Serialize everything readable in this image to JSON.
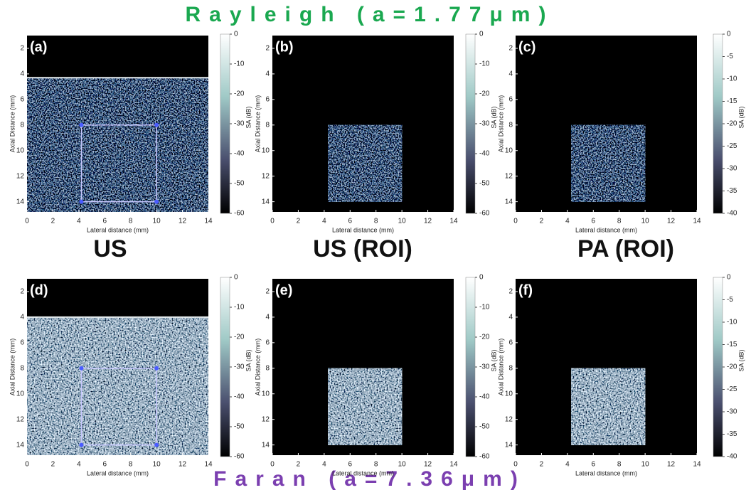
{
  "header": {
    "title": "Rayleigh (a=1.77μm)"
  },
  "footer": {
    "title": "Faran (a=7.36μm)"
  },
  "row_labels": [
    "US",
    "US (ROI)",
    "PA (ROI)"
  ],
  "axes": {
    "x_label": "Lateral distance (mm)",
    "y_label": "Axial Distance (mm)",
    "colorbar_label": "SA (dB)",
    "x_ticks": [
      0,
      2,
      4,
      6,
      8,
      10,
      12,
      14
    ],
    "y_ticks": [
      2,
      4,
      6,
      8,
      10,
      12,
      14
    ]
  },
  "panels": [
    {
      "label": "(a)",
      "colorbar_ticks": [
        0,
        -10,
        -20,
        -30,
        -40,
        -50,
        -60
      ]
    },
    {
      "label": "(b)",
      "colorbar_ticks": [
        0,
        -10,
        -20,
        -30,
        -40,
        -50,
        -60
      ]
    },
    {
      "label": "(c)",
      "colorbar_ticks": [
        0,
        -5,
        -10,
        -15,
        -20,
        -25,
        -30,
        -35,
        -40
      ]
    },
    {
      "label": "(d)",
      "colorbar_ticks": [
        0,
        -10,
        -20,
        -30,
        -40,
        -50,
        -60
      ]
    },
    {
      "label": "(e)",
      "colorbar_ticks": [
        0,
        -10,
        -20,
        -30,
        -40,
        -50,
        -60
      ]
    },
    {
      "label": "(f)",
      "colorbar_ticks": [
        0,
        -5,
        -10,
        -15,
        -20,
        -25,
        -30,
        -35,
        -40
      ]
    }
  ]
}
